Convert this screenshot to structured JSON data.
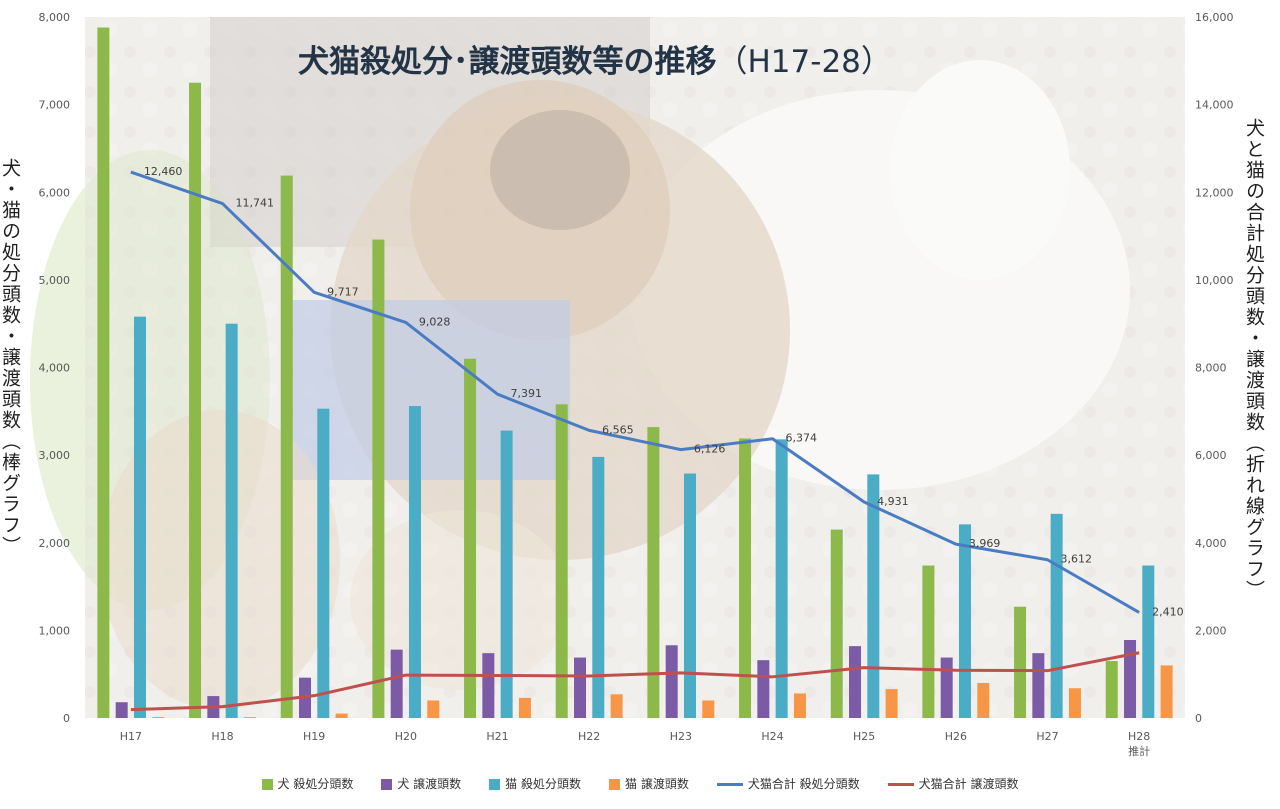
{
  "chart_data": {
    "type": "bar+line",
    "title": "犬猫殺処分･譲渡頭数等の推移",
    "title_suffix": "（H17-28）",
    "ylabel_left": "犬・猫の処分頭数・譲渡頭数（棒グラフ）",
    "ylabel_right": "犬と猫の合計処分頭数・譲渡頭数（折れ線グラフ）",
    "categories": [
      "H17",
      "H18",
      "H19",
      "H20",
      "H21",
      "H22",
      "H23",
      "H24",
      "H25",
      "H26",
      "H27",
      "H28"
    ],
    "category_sublabels": [
      "",
      "",
      "",
      "",
      "",
      "",
      "",
      "",
      "",
      "",
      "",
      "推計"
    ],
    "ylim_left": [
      0,
      8000
    ],
    "ylim_right": [
      0,
      16000
    ],
    "yticks_left": [
      "0",
      "1,000",
      "2,000",
      "3,000",
      "4,000",
      "5,000",
      "6,000",
      "7,000",
      "8,000"
    ],
    "yticks_right": [
      "0",
      "2,000",
      "4,000",
      "6,000",
      "8,000",
      "10,000",
      "12,000",
      "14,000",
      "16,000"
    ],
    "bar_series": [
      {
        "name": "犬 殺処分頭数",
        "color": "#8db94a",
        "values": [
          7880,
          7250,
          6190,
          5460,
          4100,
          3580,
          3320,
          3190,
          2150,
          1740,
          1270,
          650
        ]
      },
      {
        "name": "犬 譲渡頭数",
        "color": "#7b5ba6",
        "values": [
          180,
          250,
          460,
          780,
          740,
          690,
          830,
          660,
          820,
          690,
          740,
          890
        ]
      },
      {
        "name": "猫 殺処分頭数",
        "color": "#4bacc6",
        "values": [
          4580,
          4500,
          3530,
          3560,
          3280,
          2980,
          2790,
          3180,
          2780,
          2210,
          2330,
          1740
        ]
      },
      {
        "name": "猫 譲渡頭数",
        "color": "#f79646",
        "values": [
          10,
          10,
          50,
          200,
          230,
          270,
          200,
          280,
          330,
          400,
          340,
          600
        ]
      }
    ],
    "line_series": [
      {
        "name": "犬猫合計 殺処分頭数",
        "color": "#4a7cc4",
        "values": [
          12460,
          11741,
          9717,
          9028,
          7391,
          6565,
          6126,
          6374,
          4931,
          3969,
          3612,
          2410
        ],
        "labels": [
          "12,460",
          "11,741",
          "9,717",
          "9,028",
          "7,391",
          "6,565",
          "6,126",
          "6,374",
          "4,931",
          "3,969",
          "3,612",
          "2,410"
        ]
      },
      {
        "name": "犬猫合計 譲渡頭数",
        "color": "#c0504d",
        "values": [
          190,
          260,
          510,
          980,
          970,
          960,
          1030,
          940,
          1150,
          1090,
          1080,
          1490
        ]
      }
    ],
    "grid": false,
    "legend_position": "bottom"
  }
}
